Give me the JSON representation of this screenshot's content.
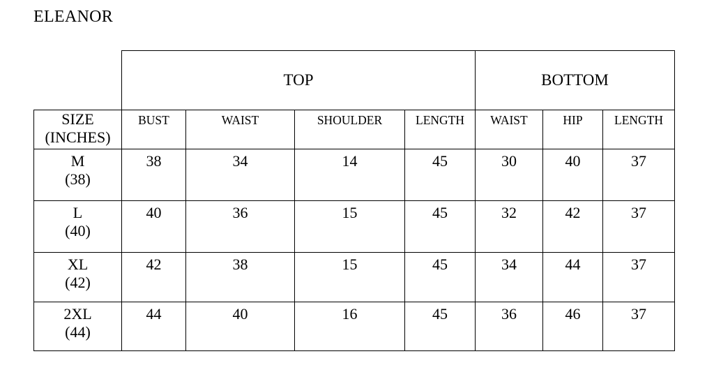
{
  "title": "ELEANOR",
  "groups": {
    "top": "TOP",
    "bottom": "BOTTOM"
  },
  "size_header": {
    "line1": "SIZE",
    "line2": "(INCHES)"
  },
  "columns": [
    "BUST",
    "WAIST",
    "SHOULDER",
    "LENGTH",
    "WAIST",
    "HIP",
    "LENGTH"
  ],
  "rows": [
    {
      "size": "M",
      "inches": "(38)",
      "values": [
        "38",
        "34",
        "14",
        "45",
        "30",
        "40",
        "37"
      ]
    },
    {
      "size": "L",
      "inches": "(40)",
      "values": [
        "40",
        "36",
        "15",
        "45",
        "32",
        "42",
        "37"
      ]
    },
    {
      "size": "XL",
      "inches": "(42)",
      "values": [
        "42",
        "38",
        "15",
        "45",
        "34",
        "44",
        "37"
      ]
    },
    {
      "size": "2XL",
      "inches": "(44)",
      "values": [
        "44",
        "40",
        "16",
        "45",
        "36",
        "46",
        "37"
      ]
    }
  ]
}
